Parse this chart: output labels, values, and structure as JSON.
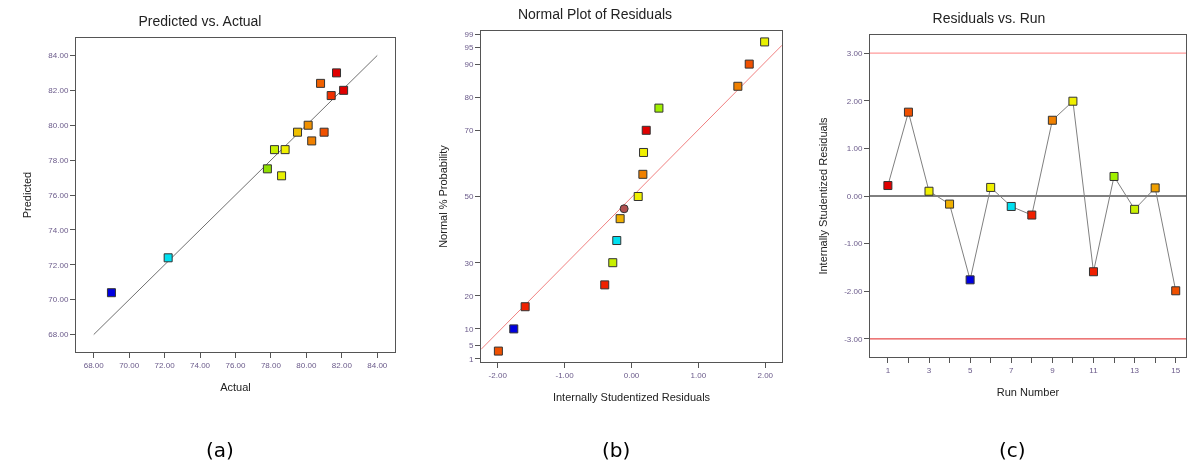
{
  "chart_data": [
    {
      "type": "scatter",
      "title": "Predicted vs. Actual",
      "xlabel": "Actual",
      "ylabel": "Predicted",
      "marker": "square",
      "annotations": [
        "(a)"
      ],
      "xlim": [
        67,
        85
      ],
      "ylim": [
        67,
        85
      ],
      "xticks": [
        {
          "value": 68,
          "label": "68.00"
        },
        {
          "value": 70,
          "label": "70.00"
        },
        {
          "value": 72,
          "label": "72.00"
        },
        {
          "value": 74,
          "label": "74.00"
        },
        {
          "value": 76,
          "label": "76.00"
        },
        {
          "value": 78,
          "label": "78.00"
        },
        {
          "value": 80,
          "label": "80.00"
        },
        {
          "value": 82,
          "label": "82.00"
        },
        {
          "value": 84,
          "label": "84.00"
        }
      ],
      "yticks": [
        {
          "value": 68,
          "label": "68.00"
        },
        {
          "value": 70,
          "label": "70.00"
        },
        {
          "value": 72,
          "label": "72.00"
        },
        {
          "value": 74,
          "label": "74.00"
        },
        {
          "value": 76,
          "label": "76.00"
        },
        {
          "value": 78,
          "label": "78.00"
        },
        {
          "value": 80,
          "label": "80.00"
        },
        {
          "value": 82,
          "label": "82.00"
        },
        {
          "value": 84,
          "label": "84.00"
        }
      ],
      "series": [
        {
          "x": [
            69.0,
            72.2,
            77.8,
            78.2,
            78.8,
            78.6,
            79.5,
            80.1,
            80.3,
            81.0,
            80.8,
            81.4,
            81.7,
            82.1
          ],
          "values": [
            70.4,
            72.4,
            77.5,
            78.6,
            78.6,
            77.1,
            79.6,
            80.0,
            79.1,
            79.6,
            82.4,
            81.7,
            83.0,
            82.0
          ],
          "colors": [
            "#0000e0",
            "#00e0f0",
            "#90e000",
            "#c8f000",
            "#f0f000",
            "#e8f000",
            "#f0c000",
            "#f09000",
            "#f08000",
            "#f05000",
            "#f06000",
            "#f03000",
            "#e00000",
            "#e00000"
          ]
        },
        {
          "type": "line",
          "x": [
            68,
            84
          ],
          "values": [
            68,
            84
          ],
          "color": "#707070",
          "marker": "none"
        }
      ]
    },
    {
      "type": "scatter",
      "title": "Normal Plot of Residuals",
      "xlabel": "Internally Studentized Residuals",
      "ylabel": "Normal % Probability",
      "marker": "square",
      "annotations": [
        "(b)"
      ],
      "xlim": [
        -2.25,
        2.25
      ],
      "ylim": [
        0,
        100
      ],
      "xticks": [
        {
          "value": -2,
          "label": "-2.00"
        },
        {
          "value": -1,
          "label": "-1.00"
        },
        {
          "value": 0,
          "label": "0.00"
        },
        {
          "value": 1,
          "label": "1.00"
        },
        {
          "value": 2,
          "label": "2.00"
        }
      ],
      "yticks": [
        1,
        5,
        10,
        20,
        30,
        50,
        70,
        80,
        90,
        95,
        99
      ],
      "series": [
        {
          "x": [
            -1.99,
            -1.76,
            -1.59,
            -0.4,
            -0.28,
            -0.22,
            -0.17,
            0.1,
            0.17,
            0.18,
            0.22,
            0.41,
            1.59,
            1.76,
            1.99
          ],
          "values": [
            3.3,
            10,
            16.7,
            23.3,
            30,
            36.7,
            43.3,
            50,
            56.7,
            63.3,
            70,
            76.7,
            83.3,
            90,
            96.7
          ],
          "colors": [
            "#f05000",
            "#0000e0",
            "#f02000",
            "#f02000",
            "#c8f000",
            "#00e0f0",
            "#f0b000",
            "#f0f000",
            "#f08000",
            "#f0f000",
            "#e00000",
            "#a0f000",
            "#f08000",
            "#f05000",
            "#e8f000"
          ]
        },
        {
          "x": [
            -0.11
          ],
          "values": [
            46.3
          ],
          "color": "#b05050",
          "marker": "circle"
        },
        {
          "type": "line",
          "x": [
            -2.25,
            2.25
          ],
          "values": [
            3.8,
            95.7
          ],
          "color": "#f08080",
          "marker": "none"
        }
      ]
    },
    {
      "type": "line",
      "title": "Residuals vs. Run",
      "xlabel": "Run Number",
      "ylabel": "Internally Studentized Residuals",
      "marker": "square",
      "annotations": [
        "(c)"
      ],
      "xlim": [
        0.13,
        15.5
      ],
      "ylim": [
        -3.38,
        3.38
      ],
      "xticks": [
        1,
        {
          "value": 2,
          "label": null
        },
        3,
        {
          "value": 4,
          "label": null
        },
        5,
        {
          "value": 6,
          "label": null
        },
        7,
        {
          "value": 8,
          "label": null
        },
        9,
        {
          "value": 10,
          "label": null
        },
        11,
        {
          "value": 12,
          "label": null
        },
        13,
        {
          "value": 14,
          "label": null
        },
        15
      ],
      "yticks": [
        {
          "value": -3,
          "label": "-3.00"
        },
        {
          "value": -2,
          "label": "-2.00"
        },
        {
          "value": -1,
          "label": "-1.00"
        },
        {
          "value": 0,
          "label": "0.00"
        },
        {
          "value": 1,
          "label": "1.00"
        },
        {
          "value": 2,
          "label": "2.00"
        },
        {
          "value": 3,
          "label": "3.00"
        }
      ],
      "ref_lines": [
        {
          "axis": "y",
          "value": 3,
          "color": "#ff8080"
        },
        {
          "axis": "y",
          "value": -3,
          "color": "#e02020"
        },
        {
          "axis": "y",
          "value": 0,
          "color": "#000000"
        }
      ],
      "series": [
        {
          "x": [
            1,
            2,
            3,
            4,
            5,
            6,
            7,
            8,
            9,
            10,
            11,
            12,
            13,
            14,
            15
          ],
          "values": [
            0.22,
            1.76,
            0.1,
            -0.17,
            -1.76,
            0.18,
            -0.22,
            -0.4,
            1.59,
            1.99,
            -1.59,
            0.41,
            -0.28,
            0.17,
            -1.99
          ],
          "color": "#808080",
          "colors": [
            "#e00000",
            "#f05000",
            "#f0f000",
            "#f0b000",
            "#0000e0",
            "#f0f000",
            "#00e0f0",
            "#f02000",
            "#f08000",
            "#f0f000",
            "#f02000",
            "#a0f000",
            "#c8f000",
            "#f0a000",
            "#f05000"
          ]
        }
      ]
    }
  ]
}
